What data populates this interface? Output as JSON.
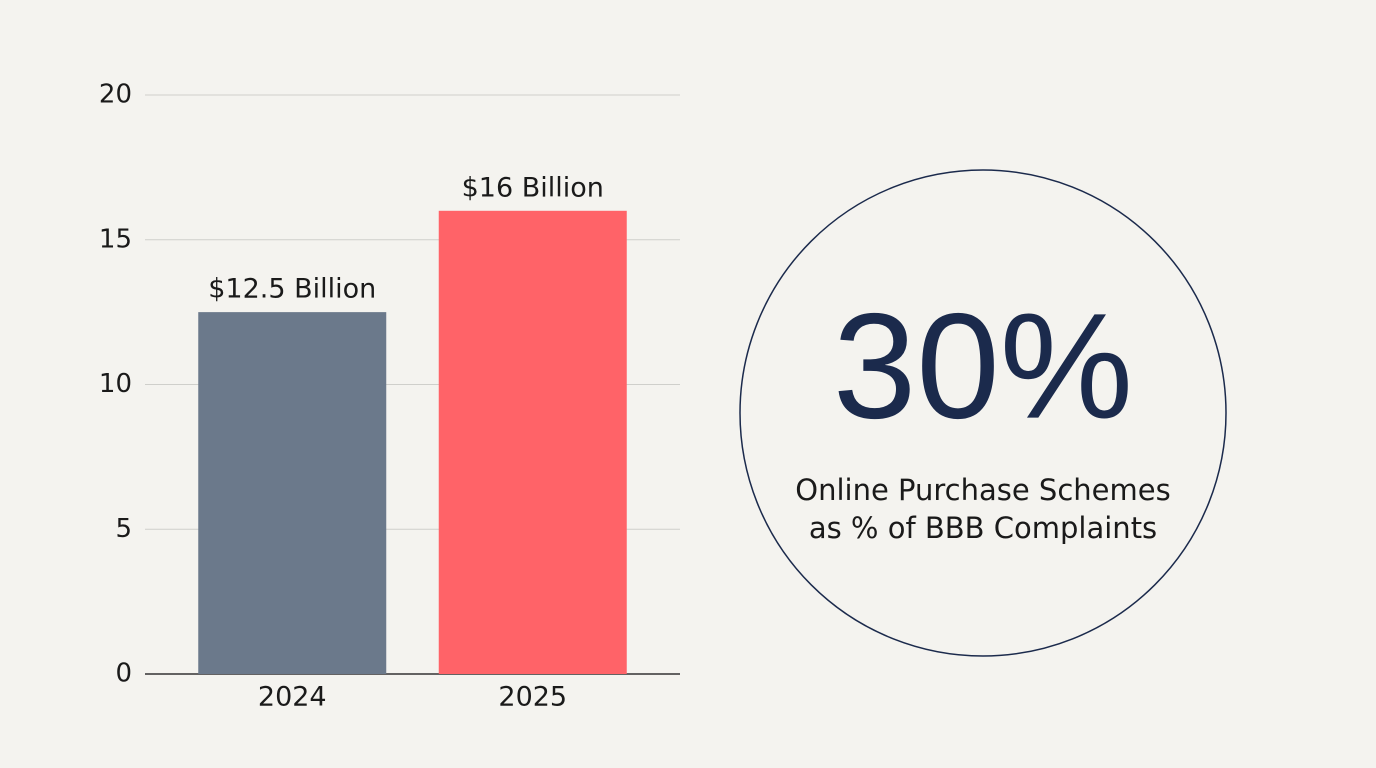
{
  "chart_data": {
    "type": "bar",
    "categories": [
      "2024",
      "2025"
    ],
    "values": [
      12.5,
      16
    ],
    "value_labels": [
      "$12.5 Billion",
      "$16 Billion"
    ],
    "colors": [
      "#6b798b",
      "#ff6368"
    ],
    "ylim": [
      0,
      20
    ],
    "yticks": [
      0,
      5,
      10,
      15,
      20
    ],
    "grid": true
  },
  "callout": {
    "stat": "30%",
    "caption": [
      "Online Purchase Schemes",
      "as % of BBB Complaints"
    ]
  }
}
